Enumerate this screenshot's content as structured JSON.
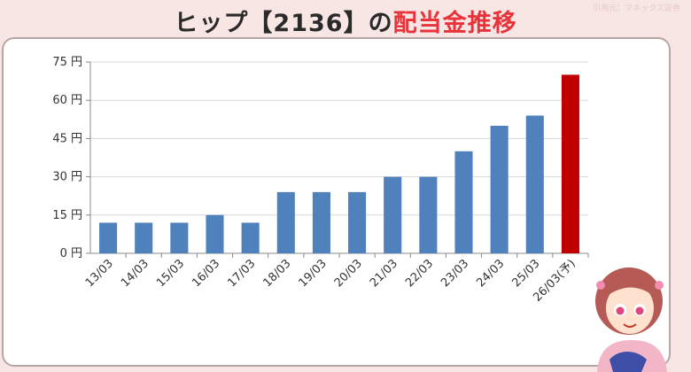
{
  "header": {
    "title_main": "ヒップ【2136】の",
    "title_accent": "配当金推移",
    "source": "引用元：マネックス証券",
    "accent_color": "#e8333a"
  },
  "chart_data": {
    "type": "bar",
    "categories": [
      "13/03",
      "14/03",
      "15/03",
      "16/03",
      "17/03",
      "18/03",
      "19/03",
      "20/03",
      "21/03",
      "22/03",
      "23/03",
      "24/03",
      "25/03",
      "26/03(予)"
    ],
    "values": [
      12,
      12,
      12,
      15,
      12,
      24,
      24,
      24,
      30,
      30,
      40,
      50,
      54,
      70
    ],
    "y_ticks": [
      0,
      15,
      30,
      45,
      60,
      75
    ],
    "y_tick_labels": [
      "0 円",
      "15 円",
      "30 円",
      "45 円",
      "60 円",
      "75 円"
    ],
    "ylim": [
      0,
      75
    ],
    "grid": true,
    "bar_color": "#4f81bd",
    "forecast_color": "#c00000",
    "forecast_index": 13,
    "title": "",
    "xlabel": "",
    "ylabel": ""
  },
  "mascot": {
    "icon": "girl-character-icon"
  }
}
